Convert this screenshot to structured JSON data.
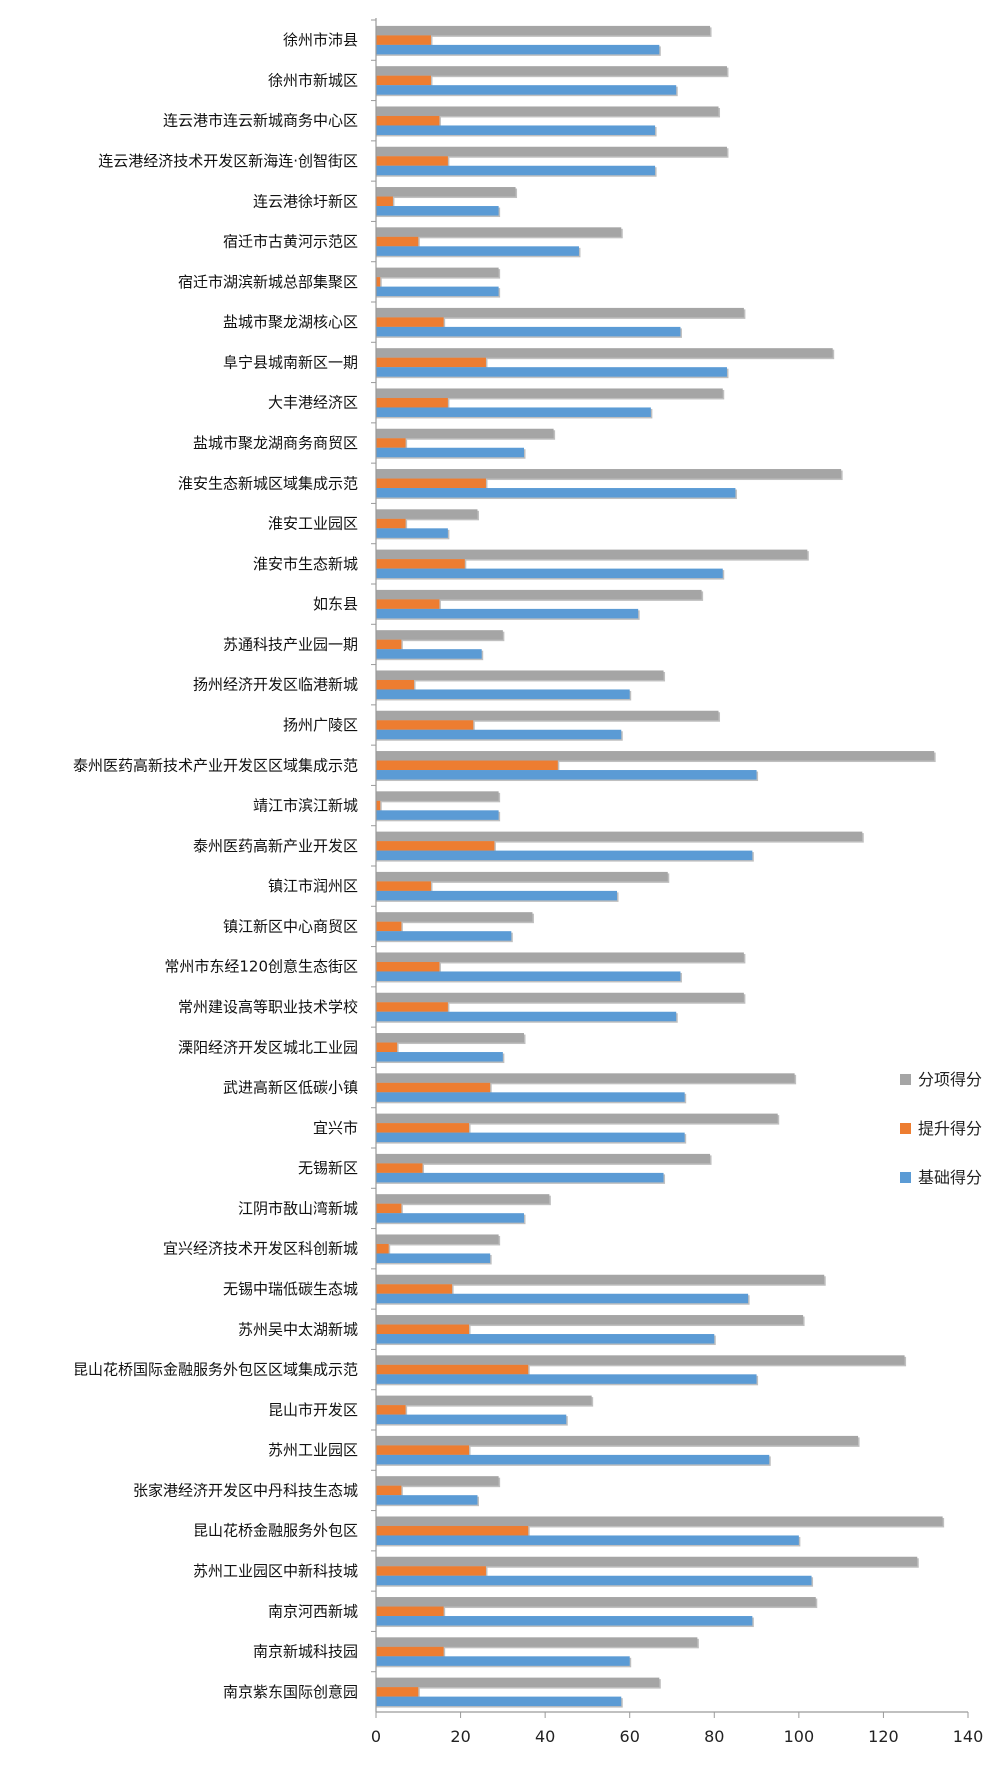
{
  "chart_data": {
    "type": "bar",
    "orientation": "horizontal",
    "categories": [
      "徐州市沛县",
      "徐州市新城区",
      "连云港市连云新城商务中心区",
      "连云港经济技术开发区新海连·创智街区",
      "连云港徐圩新区",
      "宿迁市古黄河示范区",
      "宿迁市湖滨新城总部集聚区",
      "盐城市聚龙湖核心区",
      "阜宁县城南新区一期",
      "大丰港经济区",
      "盐城市聚龙湖商务商贸区",
      "淮安生态新城区域集成示范",
      "淮安工业园区",
      "淮安市生态新城",
      "如东县",
      "苏通科技产业园一期",
      "扬州经济开发区临港新城",
      "扬州广陵区",
      "泰州医药高新技术产业开发区区域集成示范",
      "靖江市滨江新城",
      "泰州医药高新产业开发区",
      "镇江市润州区",
      "镇江新区中心商贸区",
      "常州市东经120创意生态街区",
      "常州建设高等职业技术学校",
      "溧阳经济开发区城北工业园",
      "武进高新区低碳小镇",
      "宜兴市",
      "无锡新区",
      "江阴市敔山湾新城",
      "宜兴经济技术开发区科创新城",
      "无锡中瑞低碳生态城",
      "苏州吴中太湖新城",
      "昆山花桥国际金融服务外包区区域集成示范",
      "昆山市开发区",
      "苏州工业园区",
      "张家港经济开发区中丹科技生态城",
      "昆山花桥金融服务外包区",
      "苏州工业园区中新科技城",
      "南京河西新城",
      "南京新城科技园",
      "南京紫东国际创意园"
    ],
    "series": [
      {
        "name": "分项得分",
        "color": "#a5a5a5",
        "values": [
          79,
          83,
          81,
          83,
          33,
          58,
          29,
          87,
          108,
          82,
          42,
          110,
          24,
          102,
          77,
          30,
          68,
          81,
          132,
          29,
          115,
          69,
          37,
          87,
          87,
          35,
          99,
          95,
          79,
          41,
          29,
          106,
          101,
          125,
          51,
          114,
          29,
          134,
          128,
          104,
          76,
          67
        ]
      },
      {
        "name": "提升得分",
        "color": "#ed7d31",
        "values": [
          13,
          13,
          15,
          17,
          4,
          10,
          1,
          16,
          26,
          17,
          7,
          26,
          7,
          21,
          15,
          6,
          9,
          23,
          43,
          1,
          28,
          13,
          6,
          15,
          17,
          5,
          27,
          22,
          11,
          6,
          3,
          18,
          22,
          36,
          7,
          22,
          6,
          36,
          26,
          16,
          16,
          10
        ]
      },
      {
        "name": "基础得分",
        "color": "#5b9bd5",
        "values": [
          67,
          71,
          66,
          66,
          29,
          48,
          29,
          72,
          83,
          65,
          35,
          85,
          17,
          82,
          62,
          25,
          60,
          58,
          90,
          29,
          89,
          57,
          32,
          72,
          71,
          30,
          73,
          73,
          68,
          35,
          27,
          88,
          80,
          90,
          45,
          93,
          24,
          100,
          103,
          89,
          60,
          58
        ]
      }
    ],
    "legend": [
      "分项得分",
      "提升得分",
      "基础得分"
    ],
    "legend_position": "right",
    "xlim": [
      0,
      140
    ],
    "xticks": [
      "0",
      "20",
      "40",
      "60",
      "80",
      "100",
      "120",
      "140"
    ],
    "xlabel": "",
    "ylabel": "",
    "title": "",
    "grid": false
  }
}
